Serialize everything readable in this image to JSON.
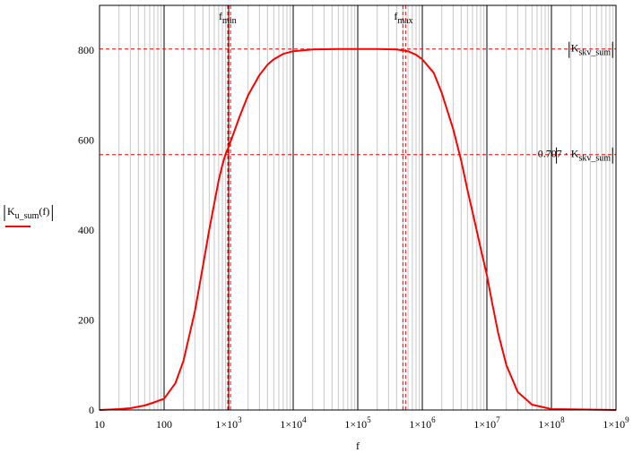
{
  "chart_data": {
    "type": "line",
    "x_scale": "log",
    "xlim": [
      10,
      1000000000
    ],
    "ylim": [
      0,
      900
    ],
    "x_ticks": [
      10,
      100,
      1000,
      10000,
      100000,
      1000000,
      10000000,
      100000000,
      1000000000
    ],
    "x_tick_labels": [
      {
        "base": "10",
        "exp": ""
      },
      {
        "base": "100",
        "exp": ""
      },
      {
        "base": "1×10",
        "exp": "3"
      },
      {
        "base": "1×10",
        "exp": "4"
      },
      {
        "base": "1×10",
        "exp": "5"
      },
      {
        "base": "1×10",
        "exp": "6"
      },
      {
        "base": "1×10",
        "exp": "7"
      },
      {
        "base": "1×10",
        "exp": "8"
      },
      {
        "base": "1×10",
        "exp": "9"
      }
    ],
    "y_ticks": [
      0,
      200,
      400,
      600,
      800
    ],
    "xlabel": "f",
    "ylabel": {
      "main": "K",
      "sub": "u_sum",
      "arg": "(f)"
    },
    "series": [
      {
        "color": "#ff0000",
        "x": [
          10,
          20,
          30,
          50,
          70,
          100,
          150,
          200,
          300,
          400,
          500,
          600,
          700,
          800,
          900,
          1000,
          1500,
          2000,
          3000,
          4000,
          5000,
          7000,
          10000,
          20000,
          50000,
          100000,
          200000,
          400000,
          600000,
          800000,
          1000000,
          1500000,
          2000000,
          3000000,
          4000000,
          5000000,
          6000000,
          7000000,
          8000000,
          10000000,
          12000000,
          15000000,
          20000000,
          30000000,
          50000000,
          100000000,
          1000000000
        ],
        "y": [
          0,
          2,
          4,
          10,
          17,
          25,
          60,
          110,
          220,
          320,
          400,
          460,
          510,
          545,
          570,
          585,
          655,
          700,
          745,
          768,
          780,
          792,
          798,
          802,
          803,
          803,
          803,
          802,
          798,
          790,
          780,
          750,
          705,
          625,
          555,
          490,
          440,
          398,
          360,
          300,
          240,
          170,
          100,
          40,
          12,
          2,
          0
        ]
      }
    ],
    "h_refs": [
      {
        "y": 803,
        "label_main": "K",
        "label_sub": "skv_sum",
        "label_prefix": ""
      },
      {
        "y": 568,
        "label_main": "K",
        "label_sub": "skv_sum",
        "label_prefix": "0.707 · "
      }
    ],
    "v_refs": [
      {
        "x": 970,
        "label_main": "f",
        "label_sub": "min"
      },
      {
        "x": 500000,
        "label_main": "f",
        "label_sub": "max"
      }
    ],
    "grid": true,
    "line_color": "#ff0000",
    "ref_color": "#ff0000",
    "major_grid_color": "#000000",
    "minor_grid_color": "#c8c8c8"
  }
}
